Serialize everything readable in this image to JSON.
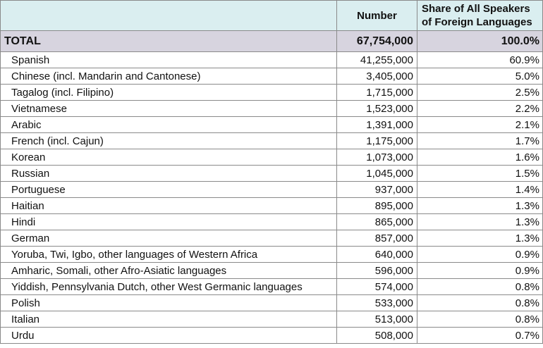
{
  "header": {
    "language": "",
    "number": "Number",
    "share_line1": "Share of All Speakers",
    "share_line2": "of Foreign Languages"
  },
  "total": {
    "label": "TOTAL",
    "number": "67,754,000",
    "share": "100.0%"
  },
  "rows": [
    {
      "language": "Spanish",
      "number": "41,255,000",
      "share": "60.9%"
    },
    {
      "language": "Chinese (incl. Mandarin and Cantonese)",
      "number": "3,405,000",
      "share": "5.0%"
    },
    {
      "language": "Tagalog (incl. Filipino)",
      "number": "1,715,000",
      "share": "2.5%"
    },
    {
      "language": "Vietnamese",
      "number": "1,523,000",
      "share": "2.2%"
    },
    {
      "language": "Arabic",
      "number": "1,391,000",
      "share": "2.1%"
    },
    {
      "language": "French (incl. Cajun)",
      "number": "1,175,000",
      "share": "1.7%"
    },
    {
      "language": "Korean",
      "number": "1,073,000",
      "share": "1.6%"
    },
    {
      "language": "Russian",
      "number": "1,045,000",
      "share": "1.5%"
    },
    {
      "language": "Portuguese",
      "number": "937,000",
      "share": "1.4%"
    },
    {
      "language": "Haitian",
      "number": "895,000",
      "share": "1.3%"
    },
    {
      "language": "Hindi",
      "number": "865,000",
      "share": "1.3%"
    },
    {
      "language": "German",
      "number": "857,000",
      "share": "1.3%"
    },
    {
      "language": "Yoruba, Twi, Igbo, other languages of Western Africa",
      "number": "640,000",
      "share": "0.9%"
    },
    {
      "language": "Amharic, Somali, other Afro-Asiatic languages",
      "number": "596,000",
      "share": "0.9%"
    },
    {
      "language": "Yiddish, Pennsylvania Dutch, other West Germanic languages",
      "number": "574,000",
      "share": "0.8%"
    },
    {
      "language": "Polish",
      "number": "533,000",
      "share": "0.8%"
    },
    {
      "language": "Italian",
      "number": "513,000",
      "share": "0.8%"
    },
    {
      "language": "Urdu",
      "number": "508,000",
      "share": "0.7%"
    }
  ],
  "colors": {
    "header_bg": "#daeef0",
    "total_bg": "#d7d4df",
    "border": "#8a8a8a"
  }
}
